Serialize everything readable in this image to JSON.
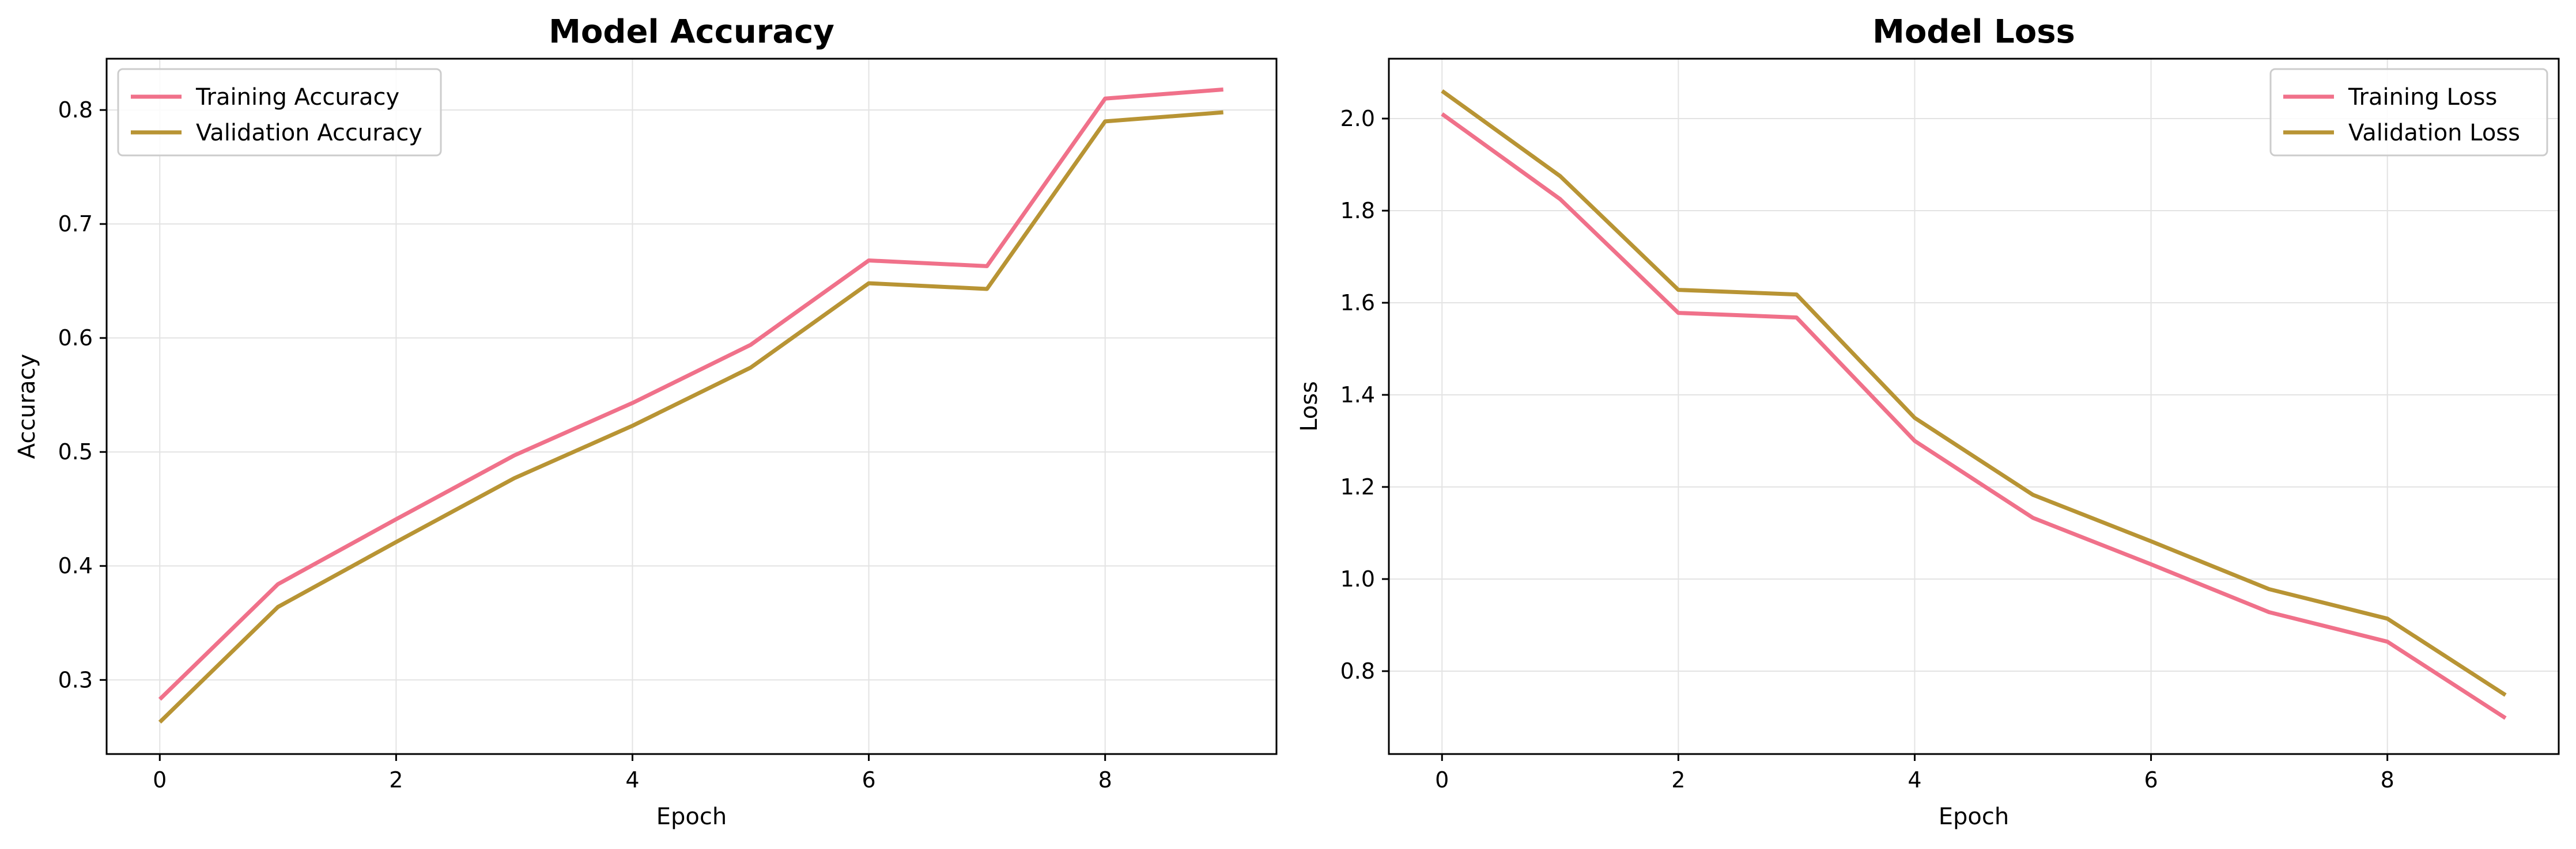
{
  "chart_data": [
    {
      "type": "line",
      "title": "Model Accuracy",
      "xlabel": "Epoch",
      "ylabel": "Accuracy",
      "xlim": [
        -0.45,
        9.45
      ],
      "ylim": [
        0.235,
        0.845
      ],
      "xticks": [
        0,
        2,
        4,
        6,
        8
      ],
      "yticks": [
        0.3,
        0.4,
        0.5,
        0.6,
        0.7,
        0.8
      ],
      "xtick_labels": [
        "0",
        "2",
        "4",
        "6",
        "8"
      ],
      "ytick_labels": [
        "0.3",
        "0.4",
        "0.5",
        "0.6",
        "0.7",
        "0.8"
      ],
      "grid": true,
      "legend_position": "top-left",
      "x": [
        0,
        1,
        2,
        3,
        4,
        5,
        6,
        7,
        8,
        9
      ],
      "series": [
        {
          "name": "Training Accuracy",
          "color": "#f0718a",
          "values": [
            0.283,
            0.384,
            0.441,
            0.497,
            0.543,
            0.594,
            0.668,
            0.663,
            0.81,
            0.818
          ]
        },
        {
          "name": "Validation Accuracy",
          "color": "#b89434",
          "values": [
            0.263,
            0.364,
            0.421,
            0.477,
            0.523,
            0.574,
            0.648,
            0.643,
            0.79,
            0.798
          ]
        }
      ]
    },
    {
      "type": "line",
      "title": "Model Loss",
      "xlabel": "Epoch",
      "ylabel": "Loss",
      "xlim": [
        -0.45,
        9.45
      ],
      "ylim": [
        0.62,
        2.13
      ],
      "xticks": [
        0,
        2,
        4,
        6,
        8
      ],
      "yticks": [
        0.8,
        1.0,
        1.2,
        1.4,
        1.6,
        1.8,
        2.0
      ],
      "xtick_labels": [
        "0",
        "2",
        "4",
        "6",
        "8"
      ],
      "ytick_labels": [
        "0.8",
        "1.0",
        "1.2",
        "1.4",
        "1.6",
        "1.8",
        "2.0"
      ],
      "grid": true,
      "legend_position": "top-right",
      "x": [
        0,
        1,
        2,
        3,
        4,
        5,
        6,
        7,
        8,
        9
      ],
      "series": [
        {
          "name": "Training Loss",
          "color": "#f0718a",
          "values": [
            2.01,
            1.825,
            1.578,
            1.568,
            1.3,
            1.133,
            1.032,
            0.928,
            0.864,
            0.698
          ]
        },
        {
          "name": "Validation Loss",
          "color": "#b89434",
          "values": [
            2.06,
            1.875,
            1.628,
            1.618,
            1.35,
            1.183,
            1.082,
            0.978,
            0.914,
            0.748
          ]
        }
      ]
    }
  ]
}
